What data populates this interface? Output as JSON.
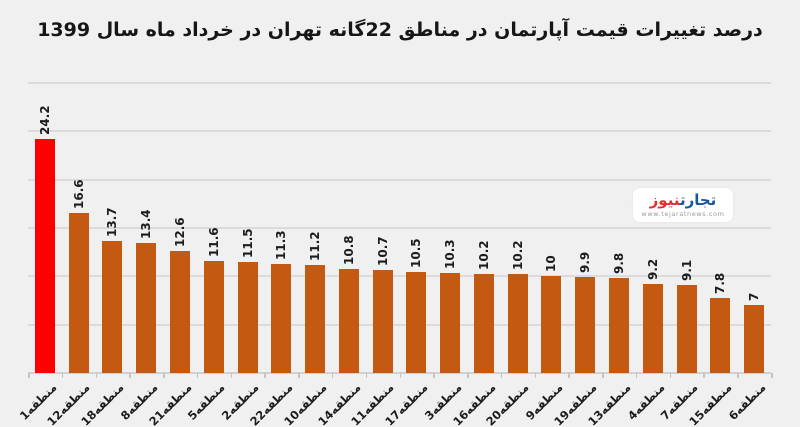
{
  "page": {
    "background": "#F0F0F0"
  },
  "chart_data": {
    "type": "bar",
    "title": "درصد تغییرات قیمت آپارتمان در مناطق 22گانه تهران در خرداد ماه سال 1399",
    "categories": [
      "منطقه1",
      "منطقه12",
      "منطقه18",
      "منطقه8",
      "منطقه21",
      "منطقه5",
      "منطقه2",
      "منطقه22",
      "منطقه10",
      "منطقه14",
      "منطقه11",
      "منطقه17",
      "منطقه3",
      "منطقه16",
      "منطقه20",
      "منطقه9",
      "منطقه19",
      "منطقه13",
      "منطقه4",
      "منطقه7",
      "منطقه15",
      "منطقه6"
    ],
    "values": [
      24.2,
      16.6,
      13.7,
      13.4,
      12.6,
      11.6,
      11.5,
      11.3,
      11.2,
      10.8,
      10.7,
      10.5,
      10.3,
      10.2,
      10.2,
      10,
      9.9,
      9.8,
      9.2,
      9.1,
      7.8,
      7
    ],
    "value_labels": [
      "24.2",
      "16.6",
      "13.7",
      "13.4",
      "12.6",
      "11.6",
      "11.5",
      "11.3",
      "11.2",
      "10.8",
      "10.7",
      "10.5",
      "10.3",
      "10.2",
      "10.2",
      "10",
      "9.9",
      "9.8",
      "9.2",
      "9.1",
      "7.8",
      "7"
    ],
    "xlabel": "",
    "ylabel": "",
    "ylim": [
      0,
      30
    ],
    "gridline_step": 5,
    "grid": true,
    "legend": "none",
    "highlight_index": 0,
    "colors": {
      "bar_default": "#C45911",
      "bar_highlight": "#FF0000",
      "gridline": "#DCDADB",
      "axis": "#D2D0D1",
      "tick": "#C4C4C4",
      "label": "#1C1C1C",
      "background": "#F0F0F0"
    }
  },
  "logo": {
    "title_blue": "تجارت",
    "title_red": "نیوز",
    "url": "www.tejaratnews.com",
    "colors": {
      "blue": "#19549F",
      "red": "#E22D31",
      "url_gray": "#9B9B9B"
    }
  }
}
